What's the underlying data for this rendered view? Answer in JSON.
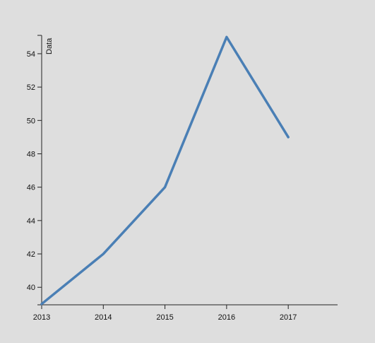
{
  "colors": {
    "background": "#dedede",
    "line": "#4a7fb5",
    "axis": "#222222"
  },
  "chart_data": {
    "type": "line",
    "title": "",
    "xlabel": "",
    "ylabel": "Data",
    "x": [
      2013,
      2014,
      2015,
      2016,
      2017
    ],
    "series": [
      {
        "name": "Data",
        "values": [
          39,
          42,
          46,
          55,
          49
        ]
      }
    ],
    "xlim": [
      2013,
      2017.8
    ],
    "ylim": [
      38.95,
      55.1
    ],
    "x_ticks": [
      "2013",
      "2014",
      "2015",
      "2016",
      "2017"
    ],
    "y_ticks": [
      "40",
      "42",
      "44",
      "46",
      "48",
      "50",
      "52",
      "54"
    ],
    "grid": false,
    "legend": "none"
  }
}
